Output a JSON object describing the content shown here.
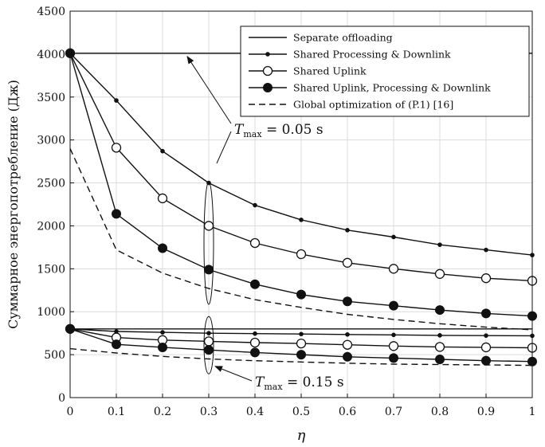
{
  "chart_data": {
    "type": "line",
    "xlabel": "η",
    "ylabel": "Суммарное энергопотребление (Дж)",
    "xlim": [
      0,
      1
    ],
    "ylim": [
      0,
      4500
    ],
    "x_ticks": [
      0,
      0.1,
      0.2,
      0.3,
      0.4,
      0.5,
      0.6,
      0.7,
      0.8,
      0.9,
      1
    ],
    "x_tick_labels": [
      "0",
      "0.1",
      "0.2",
      "0.3",
      "0.4",
      "0.5",
      "0.6",
      "0.7",
      "0.8",
      "0.9",
      "1"
    ],
    "y_ticks": [
      0,
      500,
      1000,
      1500,
      2000,
      2500,
      3000,
      3500,
      4000,
      4500
    ],
    "y_tick_labels": [
      "0",
      "500",
      "1000",
      "1500",
      "2000",
      "2500",
      "3000",
      "3500",
      "4000",
      "4500"
    ],
    "grid": true,
    "legend_position": "top-right",
    "x": [
      0,
      0.1,
      0.2,
      0.3,
      0.4,
      0.5,
      0.6,
      0.7,
      0.8,
      0.9,
      1
    ],
    "series": [
      {
        "name": "Separate offloading",
        "style": "solid",
        "marker": "none",
        "group": "T_max = 0.05 s",
        "values": [
          4010,
          4010,
          4010,
          4010,
          4010,
          4010,
          4010,
          4010,
          4010,
          4010,
          4010
        ]
      },
      {
        "name": "Shared Processing & Downlink",
        "style": "solid",
        "marker": "small-dot",
        "group": "T_max = 0.05 s",
        "values": [
          4010,
          3460,
          2870,
          2500,
          2240,
          2070,
          1950,
          1870,
          1780,
          1720,
          1660
        ]
      },
      {
        "name": "Shared Uplink",
        "style": "solid",
        "marker": "open-circle",
        "group": "T_max = 0.05 s",
        "values": [
          4010,
          2910,
          2320,
          2000,
          1800,
          1670,
          1570,
          1500,
          1440,
          1390,
          1360
        ]
      },
      {
        "name": "Shared Uplink, Processing & Downlink",
        "style": "solid",
        "marker": "filled-circle",
        "group": "T_max = 0.05 s",
        "values": [
          4010,
          2140,
          1740,
          1490,
          1320,
          1200,
          1120,
          1070,
          1020,
          980,
          950
        ]
      },
      {
        "name": "Global optimization of (P.1) [16]",
        "style": "dashed",
        "marker": "none",
        "group": "T_max = 0.05 s",
        "values": [
          2900,
          1720,
          1450,
          1270,
          1140,
          1050,
          970,
          910,
          860,
          820,
          790
        ]
      },
      {
        "name": "Separate offloading",
        "style": "solid",
        "marker": "none",
        "group": "T_max = 0.15 s",
        "values": [
          800,
          800,
          800,
          800,
          800,
          800,
          800,
          800,
          800,
          800,
          800
        ]
      },
      {
        "name": "Shared Processing & Downlink",
        "style": "solid",
        "marker": "small-dot",
        "group": "T_max = 0.15 s",
        "values": [
          800,
          770,
          760,
          750,
          745,
          740,
          735,
          730,
          725,
          722,
          720
        ]
      },
      {
        "name": "Shared Uplink",
        "style": "solid",
        "marker": "open-circle",
        "group": "T_max = 0.15 s",
        "values": [
          800,
          700,
          670,
          655,
          640,
          630,
          615,
          600,
          590,
          585,
          580
        ]
      },
      {
        "name": "Shared Uplink, Processing & Downlink",
        "style": "solid",
        "marker": "filled-circle",
        "group": "T_max = 0.15 s",
        "values": [
          800,
          620,
          585,
          555,
          525,
          500,
          475,
          460,
          445,
          430,
          420
        ]
      },
      {
        "name": "Global optimization of (P.1) [16]",
        "style": "dashed",
        "marker": "none",
        "group": "T_max = 0.15 s",
        "values": [
          570,
          520,
          480,
          450,
          430,
          415,
          400,
          390,
          385,
          380,
          375
        ]
      }
    ],
    "legend": [
      {
        "label": "Separate offloading",
        "style": "solid",
        "marker": "none"
      },
      {
        "label": "Shared Processing & Downlink",
        "style": "solid",
        "marker": "small-dot"
      },
      {
        "label": "Shared Uplink",
        "style": "solid",
        "marker": "open-circle"
      },
      {
        "label": "Shared Uplink, Processing & Downlink",
        "style": "solid",
        "marker": "filled-circle"
      },
      {
        "label": "Global optimization of (P.1) [16]",
        "style": "dashed",
        "marker": "none"
      }
    ],
    "annotations": [
      {
        "prefix": "T",
        "subscript": "max",
        "suffix": " = 0.05 s",
        "target_x": 0.25,
        "target_y": 4010
      },
      {
        "prefix": "T",
        "subscript": "max",
        "suffix": " = 0.15 s",
        "target_x": 0.3,
        "target_y": 420
      }
    ]
  }
}
